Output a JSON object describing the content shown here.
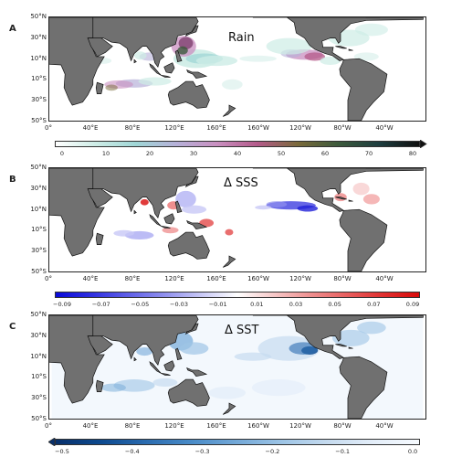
{
  "panels": [
    {
      "letter": "A",
      "title": "Rain",
      "lat_labels": [
        "50°N",
        "30°N",
        "10°N",
        "10°S",
        "30°S",
        "50°S"
      ],
      "lon_labels": [
        "0°",
        "40°E",
        "80°E",
        "120°E",
        "160°E",
        "160°W",
        "120°W",
        "80°W",
        "40°W"
      ],
      "colorbar_ticks": [
        "0",
        "10",
        "20",
        "30",
        "40",
        "50",
        "60",
        "70",
        "80"
      ],
      "colorbar_colors": [
        "#ffffff",
        "#cdece6",
        "#9fd6d6",
        "#b6b0d8",
        "#c98fc0",
        "#b45a8a",
        "#7a6a3a",
        "#3c5a3c",
        "#1e3e40",
        "#101010"
      ],
      "colorbar_extend": "max"
    },
    {
      "letter": "B",
      "title": "Δ SSS",
      "lat_labels": [
        "50°N",
        "30°N",
        "10°N",
        "10°S",
        "30°S",
        "50°S"
      ],
      "lon_labels": [
        "0°",
        "40°E",
        "80°E",
        "120°E",
        "160°E",
        "160°W",
        "120°W",
        "80°W",
        "40°W"
      ],
      "colorbar_ticks": [
        "−0.09",
        "−0.07",
        "−0.05",
        "−0.03",
        "−0.01",
        "0.01",
        "0.03",
        "0.05",
        "0.07",
        "0.09"
      ],
      "colorbar_colors": [
        "#0a0ad8",
        "#3030e0",
        "#6060e8",
        "#9090ee",
        "#c8c8f6",
        "#ffffff",
        "#f6c8c8",
        "#ee9090",
        "#e86060",
        "#e03030",
        "#d80a0a"
      ],
      "colorbar_extend": "none"
    },
    {
      "letter": "C",
      "title": "Δ SST",
      "lat_labels": [
        "50°N",
        "30°N",
        "10°N",
        "10°S",
        "30°S",
        "50°S"
      ],
      "lon_labels": [
        "0°",
        "40°E",
        "80°E",
        "120°E",
        "160°E",
        "160°W",
        "120°W",
        "80°W",
        "40°W"
      ],
      "colorbar_ticks": [
        "−0.5",
        "−0.4",
        "−0.3",
        "−0.2",
        "−0.1",
        "0.0"
      ],
      "colorbar_colors": [
        "#08306b",
        "#0d4a8f",
        "#2b6cb0",
        "#4a8cc8",
        "#74a9d8",
        "#9ec5e6",
        "#c6dbef",
        "#e4eef9",
        "#f7fbff"
      ],
      "colorbar_extend": "min"
    }
  ]
}
